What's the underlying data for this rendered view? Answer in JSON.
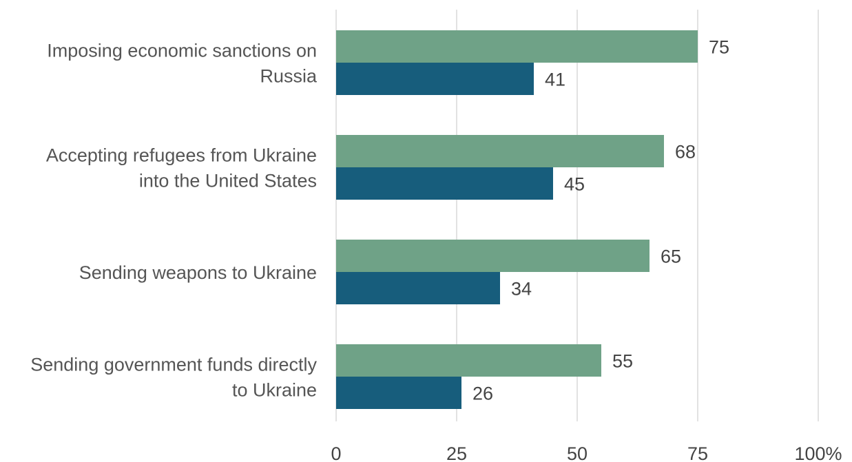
{
  "chart_data": {
    "type": "bar",
    "orientation": "horizontal",
    "title": "",
    "xlabel": "",
    "ylabel": "",
    "categories": [
      [
        "Imposing economic sanctions on",
        "Russia"
      ],
      [
        "Accepting refugees from Ukraine",
        "into the United States"
      ],
      [
        "Sending weapons to Ukraine"
      ],
      [
        "Sending government funds directly",
        "to Ukraine"
      ]
    ],
    "series": [
      {
        "values": [
          75,
          68,
          65,
          55
        ],
        "color": "#6fa287"
      },
      {
        "values": [
          41,
          45,
          34,
          26
        ],
        "color": "#175d7c"
      }
    ],
    "xlim": [
      0,
      100
    ],
    "ticks": [
      0,
      25,
      50,
      75,
      100
    ],
    "tick_labels": [
      "0",
      "25",
      "50",
      "75",
      "100%"
    ],
    "grid": true,
    "legend": "none"
  }
}
